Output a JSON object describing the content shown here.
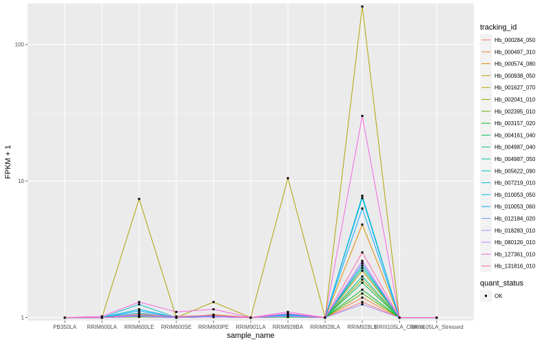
{
  "chart_data": {
    "type": "line",
    "title": "",
    "xlabel": "sample_name",
    "ylabel": "FPKM + 1",
    "yscale": "log10",
    "ylim": [
      0.95,
      200
    ],
    "y_ticks": [
      1,
      10,
      100
    ],
    "y_tick_labels": [
      "1",
      "10",
      "100"
    ],
    "categories": [
      "PB350LA",
      "RRIM600LA",
      "RRIM600LE",
      "RRIM600SE",
      "RRIM600PE",
      "RRIM901LA",
      "RRIM928BA",
      "RRIM928LA",
      "RRIM928LE",
      "RRIII105LA_Control",
      "RRIII105LA_Stressed"
    ],
    "category_labels": [
      "PB350LA",
      "RRIM600LA",
      "RRIM600LE",
      "RRIM600SE",
      "RRIM600PE",
      "RRIM901LA",
      "RRIM928BA",
      "RRIM928LA",
      "RRIM928LE",
      "RRIII105LA_Control",
      "RRIII105LA_Stressed"
    ],
    "legend": {
      "position": "right",
      "title": "tracking_id",
      "entries": [
        "Hb_000284_050",
        "Hb_000497_310",
        "Hb_000574_080",
        "Hb_000938_050",
        "Hb_001627_070",
        "Hb_002041_010",
        "Hb_002395_010",
        "Hb_003157_020",
        "Hb_004161_040",
        "Hb_004987_040",
        "Hb_004987_050",
        "Hb_005622_090",
        "Hb_007219_010",
        "Hb_010053_050",
        "Hb_010053_060",
        "Hb_012184_020",
        "Hb_018283_010",
        "Hb_080126_010",
        "Hb_127361_010",
        "Hb_131816_010"
      ]
    },
    "legend2": {
      "title": "quant_status",
      "entries": [
        "OK"
      ]
    },
    "series": [
      {
        "name": "Hb_000284_050",
        "color": "#F8766D",
        "values": [
          1,
          1,
          1.05,
          1,
          1.05,
          1,
          1.03,
          1,
          1.3,
          1,
          1
        ]
      },
      {
        "name": "Hb_000497_310",
        "color": "#EC8239",
        "values": [
          1,
          1,
          1.02,
          1,
          1.02,
          1,
          1.02,
          1,
          1.4,
          1,
          1
        ]
      },
      {
        "name": "Hb_000574_080",
        "color": "#DB8E00",
        "values": [
          1,
          1,
          1.03,
          1,
          1.05,
          1,
          1.05,
          1,
          4.8,
          1,
          1
        ]
      },
      {
        "name": "Hb_000938_050",
        "color": "#C79800",
        "values": [
          1,
          1,
          1.02,
          1,
          1.02,
          1,
          1.02,
          1,
          2.2,
          1,
          1
        ]
      },
      {
        "name": "Hb_001627_070",
        "color": "#AFA100",
        "values": [
          1,
          1,
          7.4,
          1,
          1.3,
          1,
          10.5,
          1,
          190,
          1,
          1
        ]
      },
      {
        "name": "Hb_002041_010",
        "color": "#93AA00",
        "values": [
          1,
          1,
          1.05,
          1,
          1.03,
          1,
          1.04,
          1,
          1.9,
          1,
          1
        ]
      },
      {
        "name": "Hb_002395_010",
        "color": "#5EB300",
        "values": [
          1,
          1,
          1.01,
          1,
          1.01,
          1,
          1.01,
          1,
          1.5,
          1,
          1
        ]
      },
      {
        "name": "Hb_003157_020",
        "color": "#00B81F",
        "values": [
          1,
          1,
          1.02,
          1,
          1.01,
          1,
          1.01,
          1,
          1.6,
          1,
          1
        ]
      },
      {
        "name": "Hb_004161_040",
        "color": "#00BC59",
        "values": [
          1,
          1,
          1.03,
          1,
          1.02,
          1,
          1.02,
          1,
          1.8,
          1,
          1
        ]
      },
      {
        "name": "Hb_004987_040",
        "color": "#00BF7D",
        "values": [
          1,
          1,
          1.02,
          1,
          1.01,
          1,
          1.02,
          1,
          2.0,
          1,
          1
        ]
      },
      {
        "name": "Hb_004987_050",
        "color": "#00C19C",
        "values": [
          1,
          1,
          1.04,
          1,
          1.02,
          1,
          1.03,
          1,
          2.4,
          1,
          1
        ]
      },
      {
        "name": "Hb_005622_090",
        "color": "#00C0B8",
        "values": [
          1,
          1,
          1.08,
          1,
          1.02,
          1,
          1.04,
          1,
          2.3,
          1,
          1
        ]
      },
      {
        "name": "Hb_007219_010",
        "color": "#00BCD1",
        "values": [
          1,
          1,
          1.25,
          1,
          1.03,
          1,
          1.05,
          1,
          7.8,
          1,
          1
        ]
      },
      {
        "name": "Hb_010053_050",
        "color": "#00B5E6",
        "values": [
          1,
          1,
          1.15,
          1,
          1.02,
          1,
          1.06,
          1,
          7.5,
          1,
          1
        ]
      },
      {
        "name": "Hb_010053_060",
        "color": "#00A9FF",
        "values": [
          1,
          1,
          1.12,
          1,
          1.02,
          1,
          1.05,
          1,
          6.3,
          1,
          1
        ]
      },
      {
        "name": "Hb_012184_020",
        "color": "#619CFF",
        "values": [
          1,
          1,
          1.02,
          1,
          1.01,
          1,
          1.02,
          1,
          2.5,
          1,
          1
        ]
      },
      {
        "name": "Hb_018283_010",
        "color": "#9E8FFF",
        "values": [
          1,
          1,
          1.04,
          1,
          1.02,
          1,
          1.02,
          1,
          1.25,
          1,
          1
        ]
      },
      {
        "name": "Hb_080126_010",
        "color": "#C77CFF",
        "values": [
          1,
          1,
          1.02,
          1,
          1.01,
          1,
          1.03,
          1,
          2.6,
          1,
          1
        ]
      },
      {
        "name": "Hb_127361_010",
        "color": "#F564E3",
        "values": [
          1,
          1.02,
          1.3,
          1.1,
          1.15,
          1,
          1.1,
          1,
          30,
          1,
          1
        ]
      },
      {
        "name": "Hb_131816_010",
        "color": "#FF64B0",
        "values": [
          1,
          1,
          1.06,
          1.02,
          1.04,
          1,
          1.07,
          1,
          3.0,
          1,
          1
        ]
      }
    ]
  }
}
